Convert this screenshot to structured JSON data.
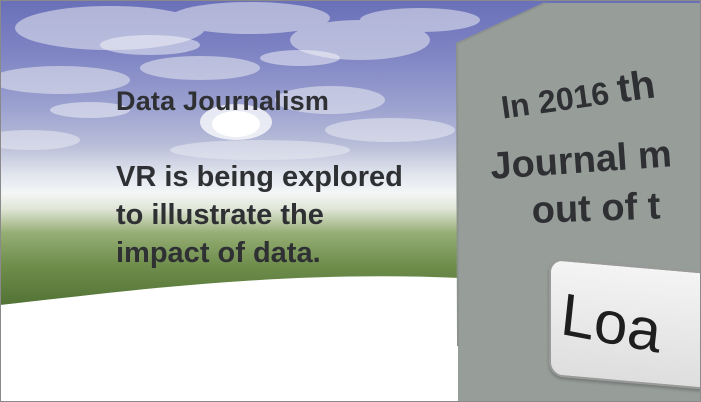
{
  "scene": {
    "left_panel": {
      "title": "Data Journalism",
      "body_lines": [
        "VR is being explored",
        "to illustrate the",
        "impact of data."
      ]
    },
    "right_panel": {
      "line1_prefix": "In 2016",
      "line1_big": "th",
      "line2": "Journal m",
      "line3": "out of t",
      "button_label": "Loa"
    }
  },
  "colors": {
    "text": "#2f3033",
    "panel": "#979e99",
    "ground": "#ffffff"
  }
}
